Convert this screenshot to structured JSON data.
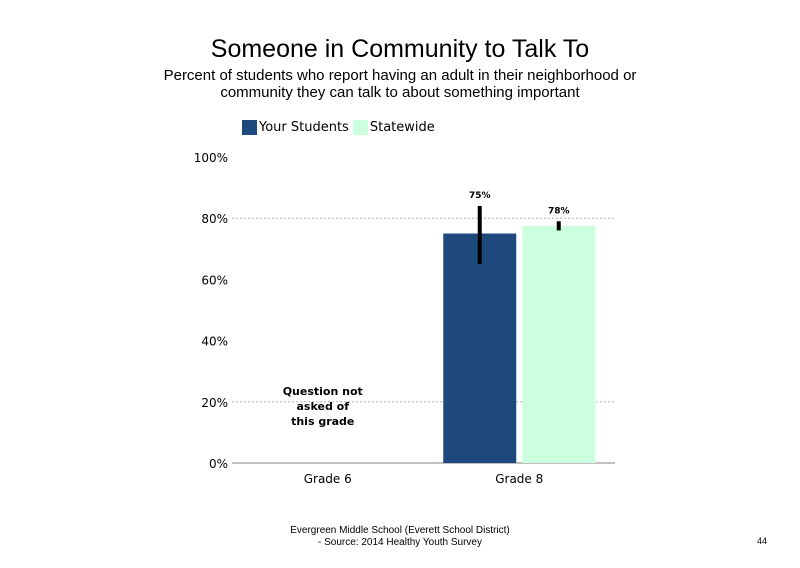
{
  "chart_data": {
    "type": "bar",
    "title": "Someone in Community to Talk To",
    "subtitle": "Percent of students who report having an adult in their neighborhood or community they can talk to about something important",
    "categories": [
      "Grade 6",
      "Grade 8"
    ],
    "series": [
      {
        "name": "Your Students",
        "color": "#1f497d",
        "values": [
          null,
          75
        ],
        "error_low": [
          null,
          65
        ],
        "error_high": [
          null,
          84
        ],
        "labels": [
          "",
          "75%"
        ]
      },
      {
        "name": "Statewide",
        "color": "#ccffdd",
        "values": [
          null,
          77.5
        ],
        "error_low": [
          null,
          76
        ],
        "error_high": [
          null,
          79
        ],
        "labels": [
          "",
          "78%"
        ]
      }
    ],
    "yticks": [
      "0%",
      "20%",
      "40%",
      "60%",
      "80%",
      "100%"
    ],
    "ylim": [
      0,
      100
    ],
    "gridlines": [
      20,
      80
    ],
    "legend": "top-left",
    "annotation": {
      "category": "Grade 6",
      "text": [
        "Question not",
        "asked of",
        "this grade"
      ]
    }
  },
  "footer": {
    "line1": "Evergreen Middle School (Everett School District)",
    "line2": "- Source: 2014 Healthy  Youth Survey"
  },
  "page_number": "44"
}
